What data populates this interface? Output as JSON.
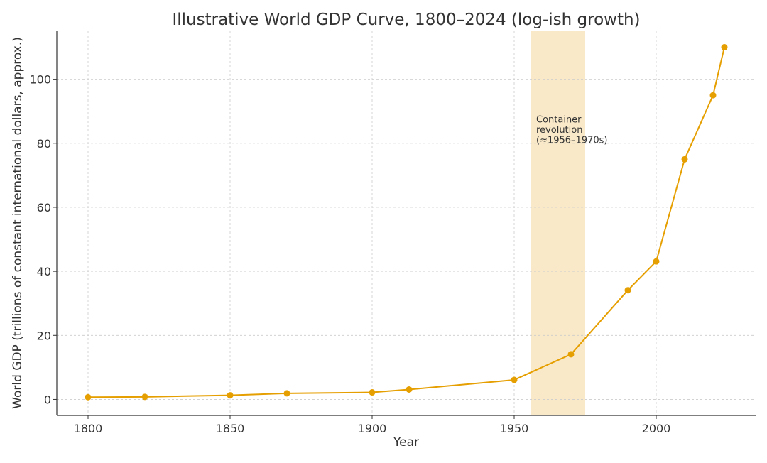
{
  "chart_data": {
    "type": "line",
    "title": "Illustrative World GDP Curve, 1800–2024 (log-ish growth)",
    "xlabel": "Year",
    "ylabel": "World GDP (trillions of constant international dollars, approx.)",
    "xlim": [
      1789,
      2035
    ],
    "ylim": [
      -5,
      115
    ],
    "x_ticks": [
      1800,
      1850,
      1900,
      1950,
      2000
    ],
    "y_ticks": [
      0,
      20,
      40,
      60,
      80,
      100
    ],
    "grid": true,
    "series": [
      {
        "color": "#e69f00",
        "x": [
          1800,
          1820,
          1850,
          1870,
          1900,
          1913,
          1950,
          1970,
          1990,
          2000,
          2010,
          2020,
          2024
        ],
        "y": [
          0.7,
          0.8,
          1.3,
          1.9,
          2.2,
          3.1,
          6.1,
          14.1,
          34.1,
          43.1,
          75,
          95,
          110
        ]
      }
    ],
    "shaded_regions": [
      {
        "x_start": 1956,
        "x_end": 1975,
        "color": "#f9e9c8",
        "label_lines": [
          "Container",
          "revolution",
          "(≈1956–1970s)"
        ]
      }
    ]
  }
}
